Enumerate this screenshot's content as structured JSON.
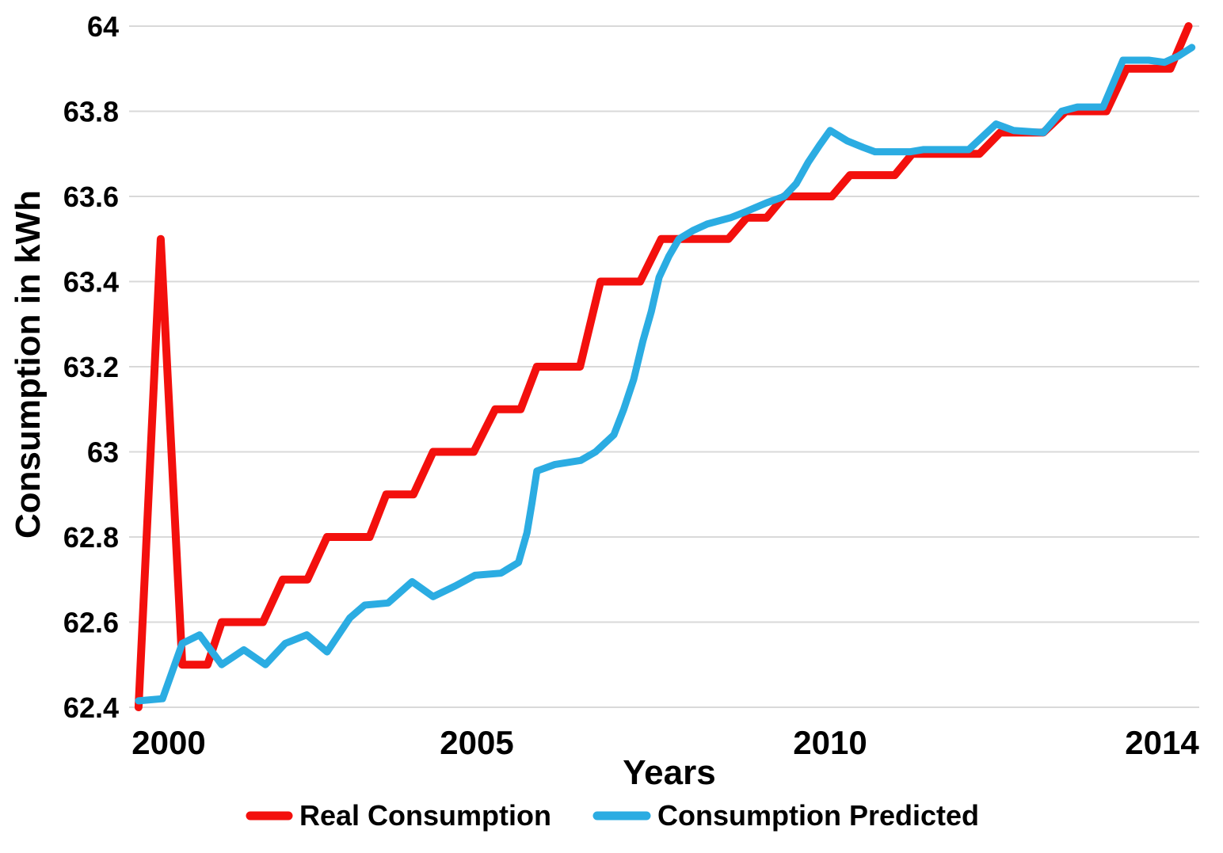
{
  "colors": {
    "background": "#ffffff",
    "gridline": "#d9d9d9",
    "text": "#000000",
    "real_consumption": "#f3100d",
    "consumption_predicted": "#2bace2"
  },
  "chart_data": {
    "type": "line",
    "title": "",
    "xlabel": "Years",
    "ylabel": "Consumption in kWh",
    "x_axis": {
      "title": "Years",
      "range_years": [
        1999.5,
        2014.45
      ],
      "ticks": [
        {
          "label": "2000",
          "year": 2000
        },
        {
          "label": "2005",
          "year": 2005
        },
        {
          "label": "2010",
          "year": 2010
        },
        {
          "label": "2014",
          "year": 2014
        }
      ]
    },
    "y_axis": {
      "title": "Consumption in kWh",
      "unit": "kWh",
      "range": [
        62.4,
        64.0
      ],
      "grid": true,
      "ticks": [
        {
          "label": "64",
          "value": 64.0
        },
        {
          "label": "63.8",
          "value": 63.8
        },
        {
          "label": "63.6",
          "value": 63.6
        },
        {
          "label": "63.4",
          "value": 63.4
        },
        {
          "label": "63.2",
          "value": 63.2
        },
        {
          "label": "63",
          "value": 63.0
        },
        {
          "label": "62.8",
          "value": 62.8
        },
        {
          "label": "62.6",
          "value": 62.6
        },
        {
          "label": "62.4",
          "value": 62.4
        }
      ]
    },
    "legend": {
      "position": "bottom",
      "entries": [
        {
          "label": "Real Consumption",
          "color": "#f3100d"
        },
        {
          "label": "Consumption Predicted",
          "color": "#2bace2"
        }
      ]
    },
    "series": [
      {
        "name": "Real Consumption",
        "color": "#f3100d",
        "points": [
          [
            1999.51,
            62.4
          ],
          [
            1999.87,
            63.5
          ],
          [
            2000.22,
            62.5
          ],
          [
            2000.63,
            62.5
          ],
          [
            2000.86,
            62.6
          ],
          [
            2001.53,
            62.6
          ],
          [
            2001.85,
            62.7
          ],
          [
            2002.25,
            62.7
          ],
          [
            2002.57,
            62.8
          ],
          [
            2003.26,
            62.8
          ],
          [
            2003.53,
            62.9
          ],
          [
            2003.97,
            62.9
          ],
          [
            2004.29,
            63.0
          ],
          [
            2004.95,
            63.0
          ],
          [
            2005.26,
            63.1
          ],
          [
            2005.62,
            63.1
          ],
          [
            2005.85,
            63.2
          ],
          [
            2006.46,
            63.2
          ],
          [
            2006.75,
            63.4
          ],
          [
            2007.31,
            63.4
          ],
          [
            2007.61,
            63.5
          ],
          [
            2008.56,
            63.5
          ],
          [
            2008.82,
            63.55
          ],
          [
            2009.1,
            63.55
          ],
          [
            2009.35,
            63.6
          ],
          [
            2010.02,
            63.6
          ],
          [
            2010.24,
            63.65
          ],
          [
            2010.78,
            63.65
          ],
          [
            2010.99,
            63.7
          ],
          [
            2011.8,
            63.7
          ],
          [
            2012.05,
            63.75
          ],
          [
            2012.57,
            63.75
          ],
          [
            2012.84,
            63.8
          ],
          [
            2013.33,
            63.8
          ],
          [
            2013.57,
            63.9
          ],
          [
            2014.1,
            63.9
          ],
          [
            2014.32,
            64.0
          ]
        ]
      },
      {
        "name": "Consumption Predicted",
        "color": "#2bace2",
        "points": [
          [
            1999.51,
            62.415
          ],
          [
            1999.9,
            62.42
          ],
          [
            2000.22,
            62.55
          ],
          [
            2000.5,
            62.57
          ],
          [
            2000.86,
            62.5
          ],
          [
            2001.22,
            62.535
          ],
          [
            2001.57,
            62.5
          ],
          [
            2001.89,
            62.55
          ],
          [
            2002.24,
            62.57
          ],
          [
            2002.57,
            62.53
          ],
          [
            2002.94,
            62.61
          ],
          [
            2003.18,
            62.64
          ],
          [
            2003.56,
            62.645
          ],
          [
            2003.95,
            62.695
          ],
          [
            2004.29,
            62.66
          ],
          [
            2004.65,
            62.685
          ],
          [
            2004.97,
            62.71
          ],
          [
            2005.34,
            62.715
          ],
          [
            2005.59,
            62.74
          ],
          [
            2005.71,
            62.81
          ],
          [
            2005.78,
            62.88
          ],
          [
            2005.85,
            62.955
          ],
          [
            2006.1,
            62.97
          ],
          [
            2006.47,
            62.98
          ],
          [
            2006.68,
            63.0
          ],
          [
            2006.94,
            63.04
          ],
          [
            2007.08,
            63.1
          ],
          [
            2007.22,
            63.17
          ],
          [
            2007.35,
            63.26
          ],
          [
            2007.47,
            63.33
          ],
          [
            2007.58,
            63.41
          ],
          [
            2007.72,
            63.46
          ],
          [
            2007.86,
            63.5
          ],
          [
            2008.06,
            63.52
          ],
          [
            2008.26,
            63.535
          ],
          [
            2008.59,
            63.55
          ],
          [
            2008.82,
            63.565
          ],
          [
            2009.1,
            63.585
          ],
          [
            2009.35,
            63.6
          ],
          [
            2009.52,
            63.63
          ],
          [
            2009.69,
            63.68
          ],
          [
            2009.85,
            63.72
          ],
          [
            2010.0,
            63.755
          ],
          [
            2010.21,
            63.73
          ],
          [
            2010.4,
            63.715
          ],
          [
            2010.54,
            63.705
          ],
          [
            2010.97,
            63.705
          ],
          [
            2011.12,
            63.71
          ],
          [
            2011.67,
            63.71
          ],
          [
            2012.0,
            63.77
          ],
          [
            2012.21,
            63.755
          ],
          [
            2012.57,
            63.75
          ],
          [
            2012.79,
            63.8
          ],
          [
            2012.98,
            63.81
          ],
          [
            2013.29,
            63.81
          ],
          [
            2013.53,
            63.92
          ],
          [
            2013.84,
            63.92
          ],
          [
            2014.03,
            63.915
          ],
          [
            2014.2,
            63.93
          ],
          [
            2014.36,
            63.95
          ]
        ]
      }
    ]
  }
}
